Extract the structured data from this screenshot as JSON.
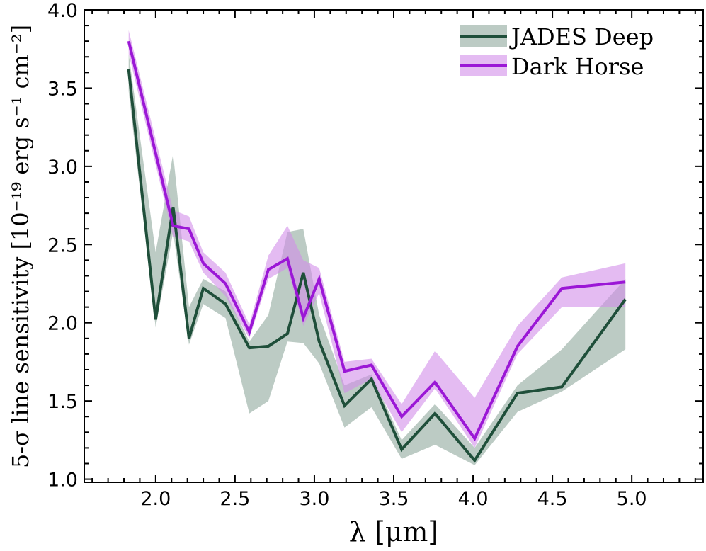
{
  "chart_data": {
    "type": "line",
    "xlabel": "λ [μm]",
    "ylabel": "5-σ line sensitivity  [10⁻¹⁹ erg s⁻¹ cm⁻²]",
    "xlim": [
      1.55,
      5.45
    ],
    "ylim": [
      0.98,
      4.0
    ],
    "xticks": [
      2.0,
      2.5,
      3.0,
      3.5,
      4.0,
      4.5,
      5.0
    ],
    "xtick_labels": [
      "2.0",
      "2.5",
      "3.0",
      "3.5",
      "4.0",
      "4.5",
      "5.0"
    ],
    "yticks": [
      1.0,
      1.5,
      2.0,
      2.5,
      3.0,
      3.5,
      4.0
    ],
    "ytick_labels": [
      "1.0",
      "1.5",
      "2.0",
      "2.5",
      "3.0",
      "3.5",
      "4.0"
    ],
    "grid": false,
    "legend_position": "top-right",
    "series": [
      {
        "name": "JADES Deep",
        "color": "#1f4f3a",
        "band_color": "#8fa99c",
        "x": [
          1.83,
          2.0,
          2.11,
          2.21,
          2.3,
          2.44,
          2.59,
          2.71,
          2.83,
          2.93,
          3.03,
          3.19,
          3.36,
          3.55,
          3.76,
          4.01,
          4.28,
          4.56,
          4.96
        ],
        "y": [
          3.62,
          2.02,
          2.74,
          1.9,
          2.22,
          2.12,
          1.84,
          1.85,
          1.93,
          2.32,
          1.88,
          1.47,
          1.64,
          1.19,
          1.42,
          1.12,
          1.55,
          1.59,
          2.15
        ],
        "upper": [
          3.72,
          2.45,
          3.08,
          2.1,
          2.28,
          2.2,
          1.88,
          2.05,
          2.58,
          2.6,
          2.05,
          1.6,
          1.67,
          1.25,
          1.48,
          1.2,
          1.6,
          1.83,
          2.28
        ],
        "lower": [
          3.48,
          1.97,
          2.58,
          1.86,
          2.12,
          2.03,
          1.42,
          1.5,
          1.88,
          1.87,
          1.74,
          1.33,
          1.46,
          1.13,
          1.22,
          1.09,
          1.43,
          1.56,
          1.83
        ]
      },
      {
        "name": "Dark Horse",
        "color": "#9b17d6",
        "band_color": "#d28ee9",
        "x": [
          1.83,
          2.11,
          2.21,
          2.3,
          2.44,
          2.59,
          2.71,
          2.83,
          2.93,
          3.03,
          3.19,
          3.36,
          3.55,
          3.76,
          4.01,
          4.28,
          4.56,
          4.96
        ],
        "y": [
          3.8,
          2.62,
          2.6,
          2.38,
          2.25,
          1.94,
          2.34,
          2.41,
          2.03,
          2.28,
          1.69,
          1.73,
          1.4,
          1.62,
          1.26,
          1.85,
          2.22,
          2.26
        ],
        "upper": [
          3.87,
          2.72,
          2.68,
          2.45,
          2.32,
          1.99,
          2.43,
          2.62,
          2.4,
          2.35,
          1.75,
          1.77,
          1.48,
          1.82,
          1.52,
          1.98,
          2.29,
          2.38
        ],
        "lower": [
          3.72,
          2.55,
          2.52,
          2.32,
          2.17,
          1.9,
          2.28,
          2.35,
          1.98,
          2.19,
          1.55,
          1.64,
          1.3,
          1.58,
          1.2,
          1.8,
          2.1,
          2.1
        ]
      }
    ]
  }
}
